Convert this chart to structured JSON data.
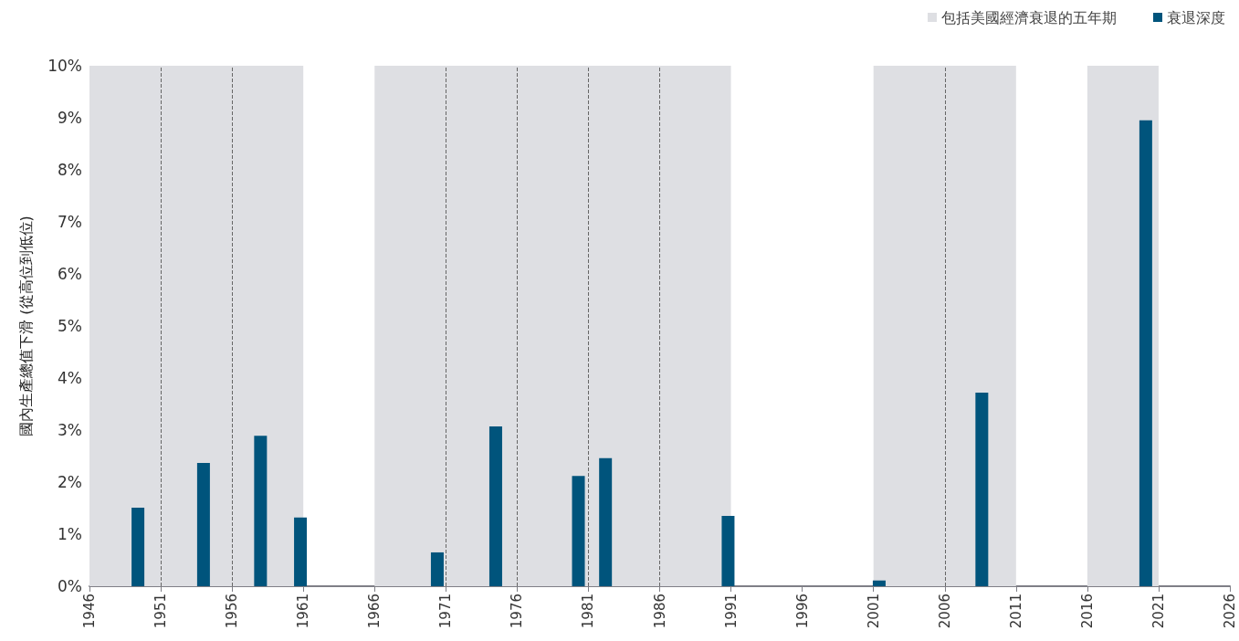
{
  "chart_data": {
    "type": "bar",
    "ylabel": "國內生產總值下滑 (從高位到低位)",
    "x": [
      1949.4,
      1954.0,
      1958.0,
      1960.8,
      1970.4,
      1974.5,
      1980.3,
      1982.2,
      1990.8,
      2001.4,
      2008.6,
      2020.1
    ],
    "series": [
      {
        "name": "衰退深度",
        "color": "#00547c",
        "values": [
          1.51,
          2.37,
          2.89,
          1.32,
          0.65,
          3.07,
          2.12,
          2.46,
          1.35,
          0.11,
          3.72,
          8.95
        ]
      }
    ],
    "xlim": [
      1946,
      2026
    ],
    "xticks": [
      1946,
      1951,
      1956,
      1961,
      1966,
      1971,
      1976,
      1981,
      1986,
      1991,
      1996,
      2001,
      2006,
      2011,
      2016,
      2021,
      2026
    ],
    "ylim": [
      0,
      10
    ],
    "yticks": [
      {
        "value": 0,
        "label": "0%"
      },
      {
        "value": 1,
        "label": "1%"
      },
      {
        "value": 2,
        "label": "2%"
      },
      {
        "value": 3,
        "label": "3%"
      },
      {
        "value": 4,
        "label": "4%"
      },
      {
        "value": 5,
        "label": "5%"
      },
      {
        "value": 6,
        "label": "6%"
      },
      {
        "value": 7,
        "label": "7%"
      },
      {
        "value": 8,
        "label": "8%"
      },
      {
        "value": 9,
        "label": "9%"
      },
      {
        "value": 10,
        "label": "10%"
      }
    ],
    "bands": [
      {
        "axis": "x",
        "from": 1946,
        "to": 1961,
        "label": "包括美國經濟衰退的五年期",
        "color": "#dedfe3"
      },
      {
        "axis": "x",
        "from": 1966,
        "to": 1991,
        "color": "#dedfe3"
      },
      {
        "axis": "x",
        "from": 2001,
        "to": 2011,
        "color": "#dedfe3"
      },
      {
        "axis": "x",
        "from": 2016,
        "to": 2021,
        "color": "#dedfe3"
      }
    ],
    "ref_lines": [
      {
        "axis": "x",
        "value": 1951,
        "line_style": "dashed",
        "color": "#666666"
      },
      {
        "axis": "x",
        "value": 1956,
        "line_style": "dashed",
        "color": "#666666"
      },
      {
        "axis": "x",
        "value": 1971,
        "line_style": "dashed",
        "color": "#666666"
      },
      {
        "axis": "x",
        "value": 1976,
        "line_style": "dashed",
        "color": "#666666"
      },
      {
        "axis": "x",
        "value": 1981,
        "line_style": "dashed",
        "color": "#666666"
      },
      {
        "axis": "x",
        "value": 1986,
        "line_style": "dashed",
        "color": "#666666"
      },
      {
        "axis": "x",
        "value": 2006,
        "line_style": "dashed",
        "color": "#666666"
      }
    ],
    "grid": false,
    "legend": "top right"
  }
}
